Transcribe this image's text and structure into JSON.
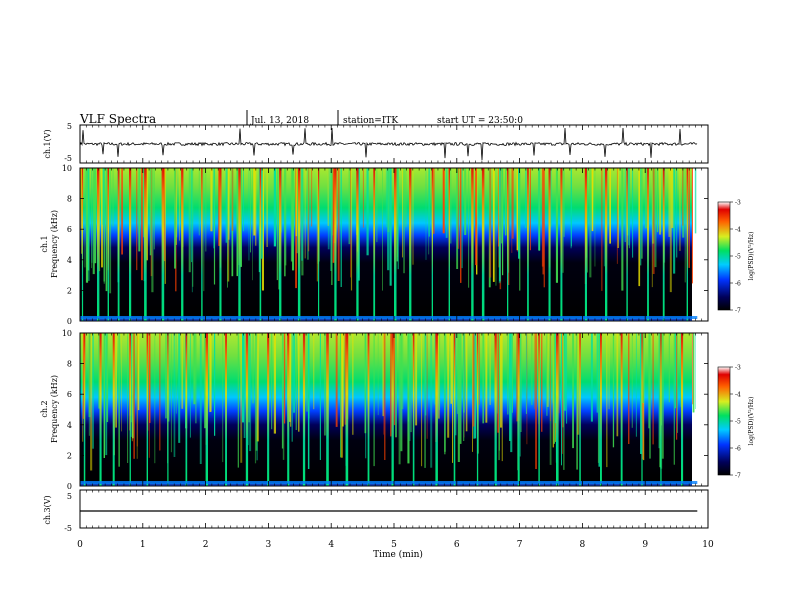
{
  "header": {
    "title": "VLF Spectra",
    "date": "Jul. 13, 2018",
    "station": "station=ITK",
    "start": "start UT =  23:50:0"
  },
  "chart_data": [
    {
      "type": "line",
      "panel": "ch1-waveform",
      "ylabel": "ch.1(V)",
      "yticks": [
        "5",
        "-5"
      ],
      "ylim": [
        -5,
        5
      ],
      "baseline": 0,
      "x_unit": "min",
      "xlim": [
        0,
        10
      ],
      "data_end": 9.83,
      "spikes": [
        {
          "x": 0.05,
          "y": 4.3
        },
        {
          "x": 0.36,
          "y": -3.2
        },
        {
          "x": 0.61,
          "y": -4.0
        },
        {
          "x": 1.32,
          "y": -3.5
        },
        {
          "x": 2.55,
          "y": 4.8
        },
        {
          "x": 2.77,
          "y": -3.6
        },
        {
          "x": 3.39,
          "y": -3.3
        },
        {
          "x": 3.59,
          "y": 4.9
        },
        {
          "x": 4.02,
          "y": 5.0
        },
        {
          "x": 4.55,
          "y": -4.2
        },
        {
          "x": 5.82,
          "y": -4.4
        },
        {
          "x": 6.18,
          "y": -3.8
        },
        {
          "x": 6.4,
          "y": -5.0
        },
        {
          "x": 7.23,
          "y": -3.6
        },
        {
          "x": 7.73,
          "y": 5.0
        },
        {
          "x": 7.81,
          "y": -3.4
        },
        {
          "x": 8.36,
          "y": -4.0
        },
        {
          "x": 8.65,
          "y": 5.0
        },
        {
          "x": 9.09,
          "y": -4.3
        },
        {
          "x": 9.55,
          "y": 4.7
        }
      ]
    },
    {
      "type": "heatmap",
      "panel": "ch1-spectrogram",
      "ylabel": "ch.1",
      "ylabel2": "Frequency (kHz)",
      "ylim": [
        0,
        10
      ],
      "yticks": [
        "0",
        "2",
        "4",
        "6",
        "8",
        "10"
      ],
      "colorbar": {
        "label": "log(PSD)(V²/Hz)",
        "range": [
          -7,
          -3
        ],
        "ticks": [
          "-3",
          "-4",
          "-5",
          "-6",
          "-7"
        ]
      },
      "background_boundary_kHz": 5.0,
      "strong_bursts_min": [
        0.03,
        0.27,
        0.44,
        0.6,
        0.78,
        1.02,
        1.3,
        1.61,
        1.93,
        2.22,
        2.52,
        2.86,
        3.17,
        3.47,
        3.79,
        4.05,
        4.4,
        4.67,
        5.0,
        5.24,
        5.6,
        5.87,
        6.23,
        6.4,
        6.8,
        7.12,
        7.46,
        7.65,
        8.04,
        8.36,
        8.7,
        9.03,
        9.28,
        9.66
      ]
    },
    {
      "type": "heatmap",
      "panel": "ch2-spectrogram",
      "ylabel": "ch.2",
      "ylabel2": "Frequency (kHz)",
      "ylim": [
        0,
        10
      ],
      "yticks": [
        "0",
        "2",
        "4",
        "6",
        "8",
        "10"
      ],
      "colorbar": {
        "label": "log(PSD)(V²/Hz)",
        "range": [
          -7,
          -3
        ],
        "ticks": [
          "-3",
          "-4",
          "-5",
          "-6",
          "-7"
        ]
      },
      "background_boundary_kHz": 4.2,
      "strong_bursts_min": [
        0.06,
        0.31,
        0.52,
        0.79,
        1.06,
        1.39,
        1.68,
        2.0,
        2.31,
        2.64,
        2.98,
        3.3,
        3.55,
        3.92,
        4.23,
        4.58,
        4.96,
        5.3,
        5.66,
        5.95,
        6.32,
        6.6,
        6.97,
        7.3,
        7.58,
        7.95,
        8.28,
        8.61,
        8.94,
        9.24,
        9.57
      ]
    },
    {
      "type": "line",
      "panel": "ch3-waveform",
      "ylabel": "ch.3(V)",
      "yticks": [
        "5",
        "-5"
      ],
      "ylim": [
        -5,
        5
      ],
      "baseline": 0,
      "x_unit": "min",
      "xlim": [
        0,
        10
      ],
      "data_end": 9.83
    }
  ],
  "xaxis": {
    "label": "Time (min)",
    "ticks": [
      "0",
      "1",
      "2",
      "3",
      "4",
      "5",
      "6",
      "7",
      "8",
      "9",
      "10"
    ]
  }
}
